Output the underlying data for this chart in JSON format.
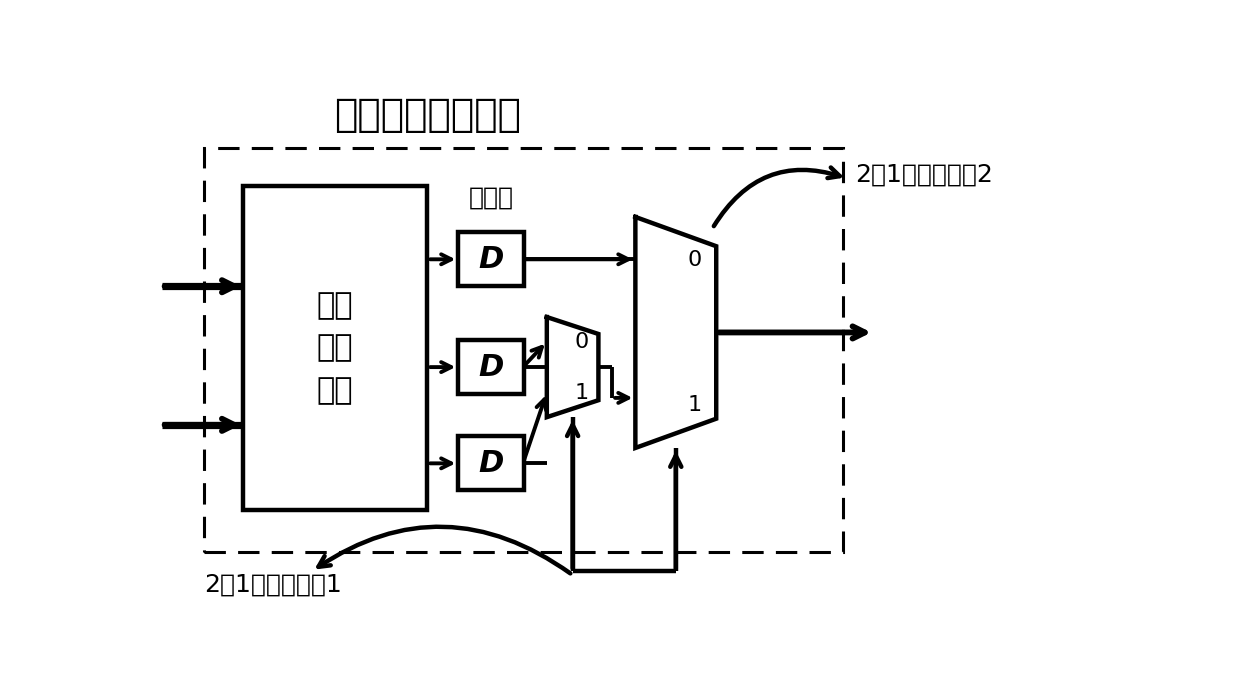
{
  "title": "融合处理选通模块",
  "label_mux1": "2选1多路选择刨1",
  "label_mux2": "2选1多路选择刨2",
  "label_register": "寄存器",
  "label_fpu_line1": "融合",
  "label_fpu_line2": "处理",
  "label_fpu_line3": "单元",
  "bg_color": "#ffffff",
  "line_color": "#000000",
  "font_size_title": 28,
  "font_size_label": 18,
  "font_size_d": 22,
  "font_size_fpu": 22,
  "font_size_01": 16
}
